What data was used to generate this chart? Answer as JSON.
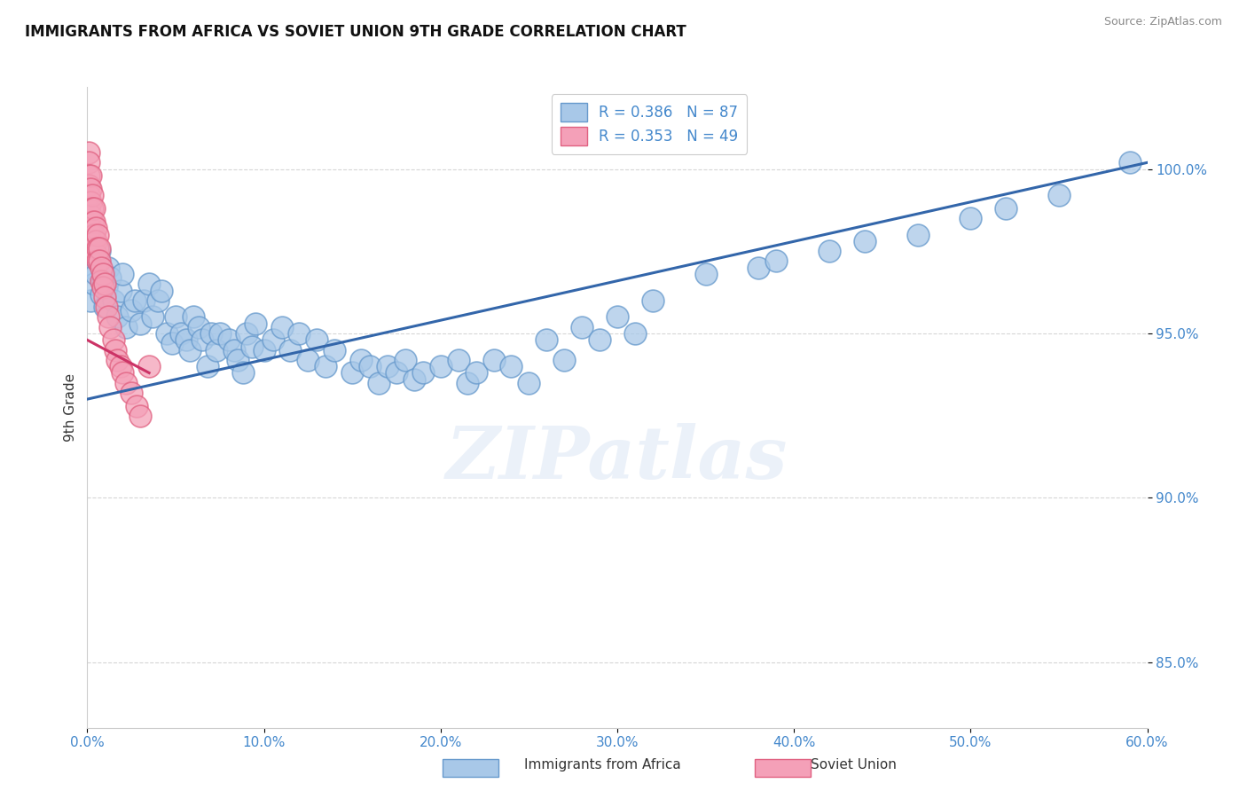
{
  "title": "IMMIGRANTS FROM AFRICA VS SOVIET UNION 9TH GRADE CORRELATION CHART",
  "source": "Source: ZipAtlas.com",
  "ylabel": "9th Grade",
  "xlim": [
    0.0,
    0.6
  ],
  "ylim": [
    0.83,
    1.025
  ],
  "yticks": [
    0.85,
    0.9,
    0.95,
    1.0
  ],
  "ytick_labels": [
    "85.0%",
    "90.0%",
    "95.0%",
    "100.0%"
  ],
  "xticks": [
    0.0,
    0.1,
    0.2,
    0.3,
    0.4,
    0.5,
    0.6
  ],
  "xtick_labels": [
    "0.0%",
    "10.0%",
    "20.0%",
    "30.0%",
    "40.0%",
    "50.0%",
    "60.0%"
  ],
  "africa_R": 0.386,
  "africa_N": 87,
  "soviet_R": 0.353,
  "soviet_N": 49,
  "africa_color": "#a8c8e8",
  "soviet_color": "#f4a0b8",
  "africa_edge_color": "#6699cc",
  "soviet_edge_color": "#e06080",
  "trend_africa_color": "#3366aa",
  "trend_soviet_color": "#cc3366",
  "legend_africa_label": "Immigrants from Africa",
  "legend_soviet_label": "Soviet Union",
  "watermark": "ZIPatlas",
  "africa_x": [
    0.002,
    0.003,
    0.004,
    0.005,
    0.006,
    0.007,
    0.008,
    0.009,
    0.01,
    0.011,
    0.012,
    0.013,
    0.015,
    0.017,
    0.019,
    0.02,
    0.022,
    0.025,
    0.027,
    0.03,
    0.032,
    0.035,
    0.037,
    0.04,
    0.042,
    0.045,
    0.048,
    0.05,
    0.053,
    0.056,
    0.058,
    0.06,
    0.063,
    0.065,
    0.068,
    0.07,
    0.073,
    0.075,
    0.08,
    0.083,
    0.085,
    0.088,
    0.09,
    0.093,
    0.095,
    0.1,
    0.105,
    0.11,
    0.115,
    0.12,
    0.125,
    0.13,
    0.135,
    0.14,
    0.15,
    0.155,
    0.16,
    0.165,
    0.17,
    0.175,
    0.18,
    0.185,
    0.19,
    0.2,
    0.21,
    0.215,
    0.22,
    0.23,
    0.24,
    0.25,
    0.26,
    0.27,
    0.28,
    0.29,
    0.3,
    0.31,
    0.32,
    0.35,
    0.38,
    0.39,
    0.42,
    0.44,
    0.47,
    0.5,
    0.52,
    0.55,
    0.59
  ],
  "africa_y": [
    0.96,
    0.97,
    0.965,
    0.968,
    0.972,
    0.975,
    0.962,
    0.966,
    0.958,
    0.964,
    0.97,
    0.967,
    0.96,
    0.955,
    0.963,
    0.968,
    0.952,
    0.957,
    0.96,
    0.953,
    0.96,
    0.965,
    0.955,
    0.96,
    0.963,
    0.95,
    0.947,
    0.955,
    0.95,
    0.948,
    0.945,
    0.955,
    0.952,
    0.948,
    0.94,
    0.95,
    0.945,
    0.95,
    0.948,
    0.945,
    0.942,
    0.938,
    0.95,
    0.946,
    0.953,
    0.945,
    0.948,
    0.952,
    0.945,
    0.95,
    0.942,
    0.948,
    0.94,
    0.945,
    0.938,
    0.942,
    0.94,
    0.935,
    0.94,
    0.938,
    0.942,
    0.936,
    0.938,
    0.94,
    0.942,
    0.935,
    0.938,
    0.942,
    0.94,
    0.935,
    0.948,
    0.942,
    0.952,
    0.948,
    0.955,
    0.95,
    0.96,
    0.968,
    0.97,
    0.972,
    0.975,
    0.978,
    0.98,
    0.985,
    0.988,
    0.992,
    1.002
  ],
  "soviet_x": [
    0.001,
    0.001,
    0.001,
    0.001,
    0.001,
    0.001,
    0.002,
    0.002,
    0.002,
    0.002,
    0.002,
    0.002,
    0.002,
    0.003,
    0.003,
    0.003,
    0.003,
    0.003,
    0.004,
    0.004,
    0.004,
    0.004,
    0.005,
    0.005,
    0.005,
    0.006,
    0.006,
    0.006,
    0.007,
    0.007,
    0.008,
    0.008,
    0.009,
    0.009,
    0.01,
    0.01,
    0.011,
    0.012,
    0.013,
    0.015,
    0.016,
    0.017,
    0.019,
    0.02,
    0.022,
    0.025,
    0.028,
    0.03,
    0.035
  ],
  "soviet_y": [
    1.005,
    1.002,
    0.998,
    0.995,
    0.992,
    0.988,
    0.998,
    0.994,
    0.99,
    0.986,
    0.982,
    0.978,
    0.975,
    0.992,
    0.988,
    0.984,
    0.98,
    0.976,
    0.988,
    0.984,
    0.98,
    0.976,
    0.982,
    0.978,
    0.974,
    0.98,
    0.976,
    0.972,
    0.976,
    0.972,
    0.97,
    0.966,
    0.968,
    0.964,
    0.965,
    0.961,
    0.958,
    0.955,
    0.952,
    0.948,
    0.945,
    0.942,
    0.94,
    0.938,
    0.935,
    0.932,
    0.928,
    0.925,
    0.94
  ],
  "trend_africa_x0": 0.0,
  "trend_africa_y0": 0.93,
  "trend_africa_x1": 0.6,
  "trend_africa_y1": 1.002,
  "trend_soviet_x0": 0.0,
  "trend_soviet_y0": 0.948,
  "trend_soviet_x1": 0.035,
  "trend_soviet_y1": 0.938
}
